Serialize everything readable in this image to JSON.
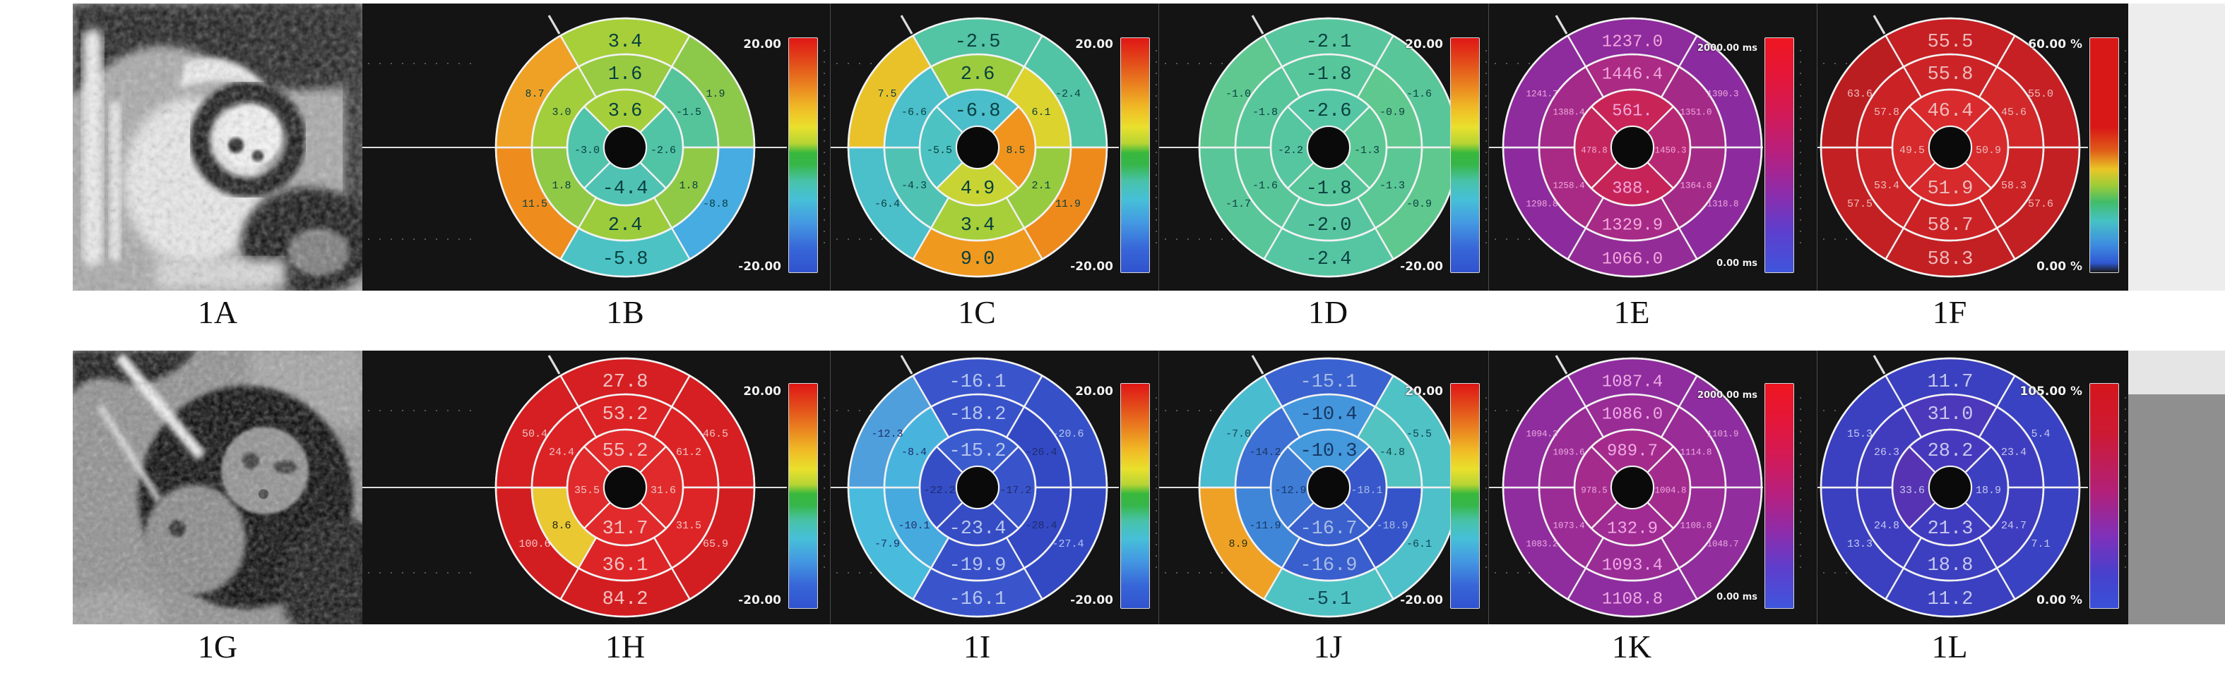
{
  "figure": {
    "captions": [
      "1A",
      "1B",
      "1C",
      "1D",
      "1E",
      "1F",
      "1G",
      "1H",
      "1I",
      "1J",
      "1K",
      "1L"
    ]
  },
  "colorbars": {
    "rainbow": "linear-gradient(180deg,#e01616 0%,#e2451a 9%,#ea8220 20%,#f0bc26 30%,#e9e02c 38%,#b6d434 45%,#38b83c 49%,#36b648 54%,#48c2a8 61%,#46c0d8 69%,#4498e2 79%,#3766d8 90%,#3053ce 100%)",
    "thermal": "linear-gradient(180deg,#ee1620 0%,#e41638 16%,#d41a56 32%,#b52080 50%,#8e2caa 66%,#5e3ecc 82%,#3f55dd 100%)",
    "fbar": "linear-gradient(180deg,#d81717 0%,#d81717 38%,#df5d18 48%,#eac626 56%,#9ccc38 63%,#42bc6a 70%,#46c2c4 78%,#3e8ee0 88%,#3058d2 96%,#1a1a1a 100%)",
    "lbar": "linear-gradient(180deg,#d4161c 0%,#cd1a34 22%,#b22078 48%,#7f30ba 68%,#4641cc 85%,#3a50d8 100%)"
  },
  "panels": [
    {
      "id": "1A",
      "type": "mri",
      "variant": "a",
      "row": 0,
      "col": 0,
      "caption": "1A"
    },
    {
      "id": "1G",
      "type": "mri",
      "variant": "g",
      "row": 1,
      "col": 0,
      "caption": "1G"
    },
    {
      "id": "1B",
      "type": "bullseye",
      "row": 0,
      "col": 1,
      "caption": "1B",
      "bar": "rainbow",
      "scale_top": "20.00",
      "scale_bottom": "-20.00",
      "tc": "#073f3f",
      "outer": [
        [
          "3.4",
          "#a6cf3a"
        ],
        [
          "1.9",
          "#8cc84a"
        ],
        [
          "-8.8",
          "#46ace2"
        ],
        [
          "-5.8",
          "#4cc2c4"
        ],
        [
          "11.5",
          "#ee8c1e"
        ],
        [
          "8.7",
          "#efa126"
        ]
      ],
      "middle": [
        [
          "1.6",
          "#98cb42"
        ],
        [
          "-1.5",
          "#55c49a"
        ],
        [
          "1.8",
          "#90c946"
        ],
        [
          "2.4",
          "#9ccc3c"
        ],
        [
          "1.8",
          "#90c946"
        ],
        [
          "3.0",
          "#a2ce3b"
        ]
      ],
      "inner": [
        [
          "3.6",
          "#a5cf3a"
        ],
        [
          "-2.6",
          "#52c4a6"
        ],
        [
          "-4.4",
          "#4fc2b4"
        ],
        [
          "-3.0",
          "#50c3ab"
        ]
      ]
    },
    {
      "id": "1C",
      "type": "bullseye",
      "row": 0,
      "col": 2,
      "caption": "1C",
      "bar": "rainbow",
      "scale_top": "20.00",
      "scale_bottom": "-20.00",
      "tc": "#073f3f",
      "outer": [
        [
          "-2.5",
          "#53c4a4"
        ],
        [
          "-2.4",
          "#52c4a6"
        ],
        [
          "11.9",
          "#ee8a1c"
        ],
        [
          "9.0",
          "#f0991f"
        ],
        [
          "-6.4",
          "#4bbfca"
        ],
        [
          "7.5",
          "#e9c229"
        ]
      ],
      "middle": [
        [
          "2.6",
          "#9bcc3e"
        ],
        [
          "6.1",
          "#dcd32e"
        ],
        [
          "2.1",
          "#96cb40"
        ],
        [
          "3.4",
          "#a6cf3a"
        ],
        [
          "-4.3",
          "#4fc2b4"
        ],
        [
          "-6.6",
          "#4bbfca"
        ]
      ],
      "inner": [
        [
          "-6.8",
          "#4abeca"
        ],
        [
          "8.5",
          "#f0941e"
        ],
        [
          "4.9",
          "#c8d434"
        ],
        [
          "-5.5",
          "#4dc2c2"
        ]
      ]
    },
    {
      "id": "1D",
      "type": "bullseye",
      "row": 0,
      "col": 3,
      "caption": "1D",
      "bar": "rainbow",
      "scale_top": "20.00",
      "scale_bottom": "-20.00",
      "tc": "#0a4040",
      "outer": [
        [
          "-2.1",
          "#57c69e"
        ],
        [
          "-1.6",
          "#59c699"
        ],
        [
          "-0.9",
          "#5fc88e"
        ],
        [
          "-2.4",
          "#56c6a2"
        ],
        [
          "-1.7",
          "#59c699"
        ],
        [
          "-1.0",
          "#5ec890"
        ]
      ],
      "middle": [
        [
          "-1.8",
          "#58c69b"
        ],
        [
          "-0.9",
          "#5fc88e"
        ],
        [
          "-1.3",
          "#5bc795"
        ],
        [
          "-2.0",
          "#57c6a0"
        ],
        [
          "-1.6",
          "#59c699"
        ],
        [
          "-1.8",
          "#58c69b"
        ]
      ],
      "inner": [
        [
          "-2.6",
          "#55c6a4"
        ],
        [
          "-1.3",
          "#5bc795"
        ],
        [
          "-1.8",
          "#58c69b"
        ],
        [
          "-2.2",
          "#56c6a0"
        ]
      ]
    },
    {
      "id": "1E",
      "type": "bullseye",
      "row": 0,
      "col": 4,
      "caption": "1E",
      "bar": "thermal",
      "ms": true,
      "scale_top": "2000.00 ms",
      "scale_bottom": "0.00 ms",
      "tc": "#f2a8dc",
      "outer": [
        [
          "1237.0",
          "#8e2b9d"
        ],
        [
          "1390.3",
          "#8b2ba0"
        ],
        [
          "1318.8",
          "#8d2b9e"
        ],
        [
          "1066.0",
          "#942c98"
        ],
        [
          "1298.8",
          "#8d2b9e"
        ],
        [
          "1241.7",
          "#8e2b9d"
        ]
      ],
      "middle": [
        [
          "1446.4",
          "#aa2a84"
        ],
        [
          "1351.0",
          "#a42a88"
        ],
        [
          "1364.8",
          "#a42a88"
        ],
        [
          "1329.9",
          "#a62a86"
        ],
        [
          "1258.4",
          "#a82a85"
        ],
        [
          "1388.4",
          "#a32a89"
        ]
      ],
      "inner": [
        [
          "561.",
          "#c92458"
        ],
        [
          "1450.3",
          "#b72874"
        ],
        [
          "388.",
          "#c62459"
        ],
        [
          "478.8",
          "#c4255c"
        ]
      ]
    },
    {
      "id": "1F",
      "type": "bullseye",
      "row": 0,
      "col": 5,
      "caption": "1F",
      "bar": "fbar",
      "scale_top": "60.00 %",
      "scale_bottom": "0.00 %",
      "tc": "#eebcbc",
      "outer": [
        [
          "55.5",
          "#c62024"
        ],
        [
          "55.0",
          "#c62024"
        ],
        [
          "57.6",
          "#c32023"
        ],
        [
          "58.3",
          "#c32023"
        ],
        [
          "57.5",
          "#c32023"
        ],
        [
          "63.6",
          "#bb1e21"
        ]
      ],
      "middle": [
        [
          "55.8",
          "#cc2327"
        ],
        [
          "45.6",
          "#d2282a"
        ],
        [
          "58.3",
          "#cb2226"
        ],
        [
          "58.7",
          "#cb2226"
        ],
        [
          "53.4",
          "#cd2427"
        ],
        [
          "57.8",
          "#cb2226"
        ]
      ],
      "inner": [
        [
          "46.4",
          "#d92b2d"
        ],
        [
          "50.9",
          "#d62a2c"
        ],
        [
          "51.9",
          "#d62a2c"
        ],
        [
          "49.5",
          "#d72a2c"
        ]
      ]
    },
    {
      "id": "1H",
      "type": "bullseye",
      "row": 1,
      "col": 1,
      "caption": "1H",
      "bar": "rainbow",
      "scale_top": "20.00",
      "scale_bottom": "-20.00",
      "tc": "#f2c2c2",
      "outer": [
        [
          "27.8",
          "#d51f22"
        ],
        [
          "46.5",
          "#d51f22"
        ],
        [
          "65.9",
          "#d31e21"
        ],
        [
          "84.2",
          "#d31e21"
        ],
        [
          "100.6",
          "#d31e21"
        ],
        [
          "50.4",
          "#d51f22"
        ]
      ],
      "middle": [
        [
          "53.2",
          "#db2325"
        ],
        [
          "61.2",
          "#db2325"
        ],
        [
          "31.5",
          "#dd2527"
        ],
        [
          "36.1",
          "#dd2527"
        ],
        [
          "8.6",
          "#e9c832",
          "#222222"
        ],
        [
          "24.4",
          "#db2325"
        ]
      ],
      "inner": [
        [
          "55.2",
          "#e12a2b"
        ],
        [
          "31.6",
          "#e12a2b"
        ],
        [
          "31.7",
          "#e12a2b"
        ],
        [
          "35.5",
          "#e12a2b"
        ]
      ]
    },
    {
      "id": "1I",
      "type": "bullseye",
      "row": 1,
      "col": 2,
      "caption": "1I",
      "bar": "rainbow",
      "scale_top": "20.00",
      "scale_bottom": "-20.00",
      "tc": "#b6c6ee",
      "outer": [
        [
          "-16.1",
          "#3a55cc"
        ],
        [
          "-20.6",
          "#3650c8"
        ],
        [
          "-27.4",
          "#3349c4"
        ],
        [
          "-16.1",
          "#3a55cc"
        ],
        [
          "-7.9",
          "#49bbdc",
          "#1d2c6e"
        ],
        [
          "-12.3",
          "#4f9fdc",
          "#1d2c6e"
        ]
      ],
      "middle": [
        [
          "-18.2",
          "#3852ca"
        ],
        [
          "-26.4",
          "#3349c4",
          "#1d2c6e"
        ],
        [
          "-28.4",
          "#3348c2",
          "#1d2c6e"
        ],
        [
          "-19.9",
          "#374fc8"
        ],
        [
          "-10.1",
          "#47aade",
          "#1d2c6e"
        ],
        [
          "-8.4",
          "#48b4de",
          "#1d2c6e"
        ]
      ],
      "inner": [
        [
          "-15.2",
          "#3b5ccf"
        ],
        [
          "-17.2",
          "#3954cb",
          "#1d2c6e"
        ],
        [
          "-23.4",
          "#354cc5"
        ],
        [
          "-22.2",
          "#354ec6",
          "#1d2c6e"
        ]
      ]
    },
    {
      "id": "1J",
      "type": "bullseye",
      "row": 1,
      "col": 3,
      "caption": "1J",
      "bar": "rainbow",
      "scale_top": "20.00",
      "scale_bottom": "-20.00",
      "tc": "#a8bce4",
      "outer": [
        [
          "-15.1",
          "#3a62d0"
        ],
        [
          "-5.5",
          "#4fc2c6",
          "#0f4450"
        ],
        [
          "-6.1",
          "#4dc0ca",
          "#0f4450"
        ],
        [
          "-5.1",
          "#4fc2c4",
          "#0f4450"
        ],
        [
          "8.9",
          "#efa126",
          "#233010"
        ],
        [
          "-7.0",
          "#4abcd0",
          "#0f4450"
        ]
      ],
      "middle": [
        [
          "-10.4",
          "#4496dc",
          "#173764"
        ],
        [
          "-4.8",
          "#52c3c0",
          "#0f4450"
        ],
        [
          "-18.9",
          "#3654c9"
        ],
        [
          "-16.9",
          "#395ecd"
        ],
        [
          "-11.9",
          "#3f86d8",
          "#173764"
        ],
        [
          "-14.2",
          "#3c70d4",
          "#173764"
        ]
      ],
      "inner": [
        [
          "-10.3",
          "#4498dc",
          "#173764"
        ],
        [
          "-18.1",
          "#3757ca"
        ],
        [
          "-16.7",
          "#3960cd"
        ],
        [
          "-12.9",
          "#3e7cd6",
          "#173764"
        ]
      ]
    },
    {
      "id": "1K",
      "type": "bullseye",
      "row": 1,
      "col": 4,
      "caption": "1K",
      "bar": "thermal",
      "ms": true,
      "scale_top": "2000.00 ms",
      "scale_bottom": "0.00 ms",
      "tc": "#eeaae4",
      "outer": [
        [
          "1087.4",
          "#8f2d9e"
        ],
        [
          "1101.9",
          "#8e2d9f"
        ],
        [
          "1048.7",
          "#912d9c"
        ],
        [
          "1108.8",
          "#8e2d9f"
        ],
        [
          "1083.2",
          "#8f2d9e"
        ],
        [
          "1094.3",
          "#8f2d9e"
        ]
      ],
      "middle": [
        [
          "1086.0",
          "#9a2c96"
        ],
        [
          "1114.8",
          "#992c97"
        ],
        [
          "1108.8",
          "#992c97"
        ],
        [
          "1093.4",
          "#9a2c96"
        ],
        [
          "1073.4",
          "#9b2c95"
        ],
        [
          "1093.6",
          "#9a2c96"
        ]
      ],
      "inner": [
        [
          "989.7",
          "#a42b8c"
        ],
        [
          "1004.8",
          "#a32b8d"
        ],
        [
          "132.9",
          "#a02b92"
        ],
        [
          "978.5",
          "#a42b8c"
        ]
      ]
    },
    {
      "id": "1L",
      "type": "bullseye",
      "row": 1,
      "col": 5,
      "caption": "1L",
      "bar": "lbar",
      "scale_top": "105.00 %",
      "scale_bottom": "0.00 %",
      "tc": "#c6c8ee",
      "outer": [
        [
          "11.7",
          "#3a40c0"
        ],
        [
          "5.4",
          "#3942c2"
        ],
        [
          "7.1",
          "#3942c2"
        ],
        [
          "11.2",
          "#3a40c0"
        ],
        [
          "13.3",
          "#3a40c0"
        ],
        [
          "15.3",
          "#3a40c0"
        ]
      ],
      "middle": [
        [
          "31.0",
          "#4c38bb"
        ],
        [
          "23.4",
          "#3f3dbf"
        ],
        [
          "24.7",
          "#3f3dbf"
        ],
        [
          "18.8",
          "#3c3fc0"
        ],
        [
          "24.8",
          "#3f3dbf"
        ],
        [
          "26.3",
          "#413cbe"
        ]
      ],
      "inner": [
        [
          "28.2",
          "#4739bd"
        ],
        [
          "18.9",
          "#3c3fc0"
        ],
        [
          "21.3",
          "#3f3cc0"
        ],
        [
          "33.6",
          "#5633b2"
        ]
      ]
    }
  ],
  "chart_data": [
    {
      "panel": "1B",
      "type": "heatmap",
      "subtype": "polar-bullseye-16-segment",
      "legend_position": "right",
      "scale": {
        "max": 20.0,
        "min": -20.0
      },
      "segment_order": {
        "rings": [
          "top",
          "upper-right",
          "lower-right",
          "bottom",
          "lower-left",
          "upper-left"
        ],
        "apical": [
          "top",
          "right",
          "bottom",
          "left"
        ]
      },
      "outer": [
        3.4,
        1.9,
        -8.8,
        -5.8,
        11.5,
        8.7
      ],
      "middle": [
        1.6,
        -1.5,
        1.8,
        2.4,
        1.8,
        3.0
      ],
      "inner": [
        3.6,
        -2.6,
        -4.4,
        -3.0
      ]
    },
    {
      "panel": "1C",
      "type": "heatmap",
      "subtype": "polar-bullseye-16-segment",
      "legend_position": "right",
      "scale": {
        "max": 20.0,
        "min": -20.0
      },
      "outer": [
        -2.5,
        -2.4,
        11.9,
        9.0,
        -6.4,
        7.5
      ],
      "middle": [
        2.6,
        6.1,
        2.1,
        3.4,
        -4.3,
        -6.6
      ],
      "inner": [
        -6.8,
        8.5,
        4.9,
        -5.5
      ]
    },
    {
      "panel": "1D",
      "type": "heatmap",
      "subtype": "polar-bullseye-16-segment",
      "legend_position": "right",
      "scale": {
        "max": 20.0,
        "min": -20.0
      },
      "outer": [
        -2.1,
        -1.6,
        -0.9,
        -2.4,
        -1.7,
        -1.0
      ],
      "middle": [
        -1.8,
        -0.9,
        -1.3,
        -2.0,
        -1.6,
        -1.8
      ],
      "inner": [
        -2.6,
        -1.3,
        -1.8,
        -2.2
      ]
    },
    {
      "panel": "1E",
      "type": "heatmap",
      "subtype": "polar-bullseye-16-segment",
      "legend_position": "right",
      "scale": {
        "max": 2000.0,
        "min": 0.0,
        "unit": "ms"
      },
      "outer": [
        1237.0,
        1390.3,
        1318.8,
        1066.0,
        1298.8,
        1241.7
      ],
      "middle": [
        1446.4,
        1351.0,
        1364.8,
        1329.9,
        1258.4,
        1388.4
      ],
      "inner": [
        561,
        1450.3,
        388,
        478.8
      ]
    },
    {
      "panel": "1F",
      "type": "heatmap",
      "subtype": "polar-bullseye-16-segment",
      "legend_position": "right",
      "scale": {
        "max": 60.0,
        "min": 0.0,
        "unit": "%"
      },
      "outer": [
        55.5,
        55.0,
        57.6,
        58.3,
        57.5,
        63.6
      ],
      "middle": [
        55.8,
        45.6,
        58.3,
        58.7,
        53.4,
        57.8
      ],
      "inner": [
        46.4,
        50.9,
        51.9,
        49.5
      ]
    },
    {
      "panel": "1H",
      "type": "heatmap",
      "subtype": "polar-bullseye-16-segment",
      "legend_position": "right",
      "scale": {
        "max": 20.0,
        "min": -20.0
      },
      "outer": [
        27.8,
        46.5,
        65.9,
        84.2,
        100.6,
        50.4
      ],
      "middle": [
        53.2,
        61.2,
        31.5,
        36.1,
        8.6,
        24.4
      ],
      "inner": [
        55.2,
        31.6,
        31.7,
        35.5
      ]
    },
    {
      "panel": "1I",
      "type": "heatmap",
      "subtype": "polar-bullseye-16-segment",
      "legend_position": "right",
      "scale": {
        "max": 20.0,
        "min": -20.0
      },
      "outer": [
        -16.1,
        -20.6,
        -27.4,
        -16.1,
        -7.9,
        -12.3
      ],
      "middle": [
        -18.2,
        -26.4,
        -28.4,
        -19.9,
        -10.1,
        -8.4
      ],
      "inner": [
        -15.2,
        -17.2,
        -23.4,
        -22.2
      ]
    },
    {
      "panel": "1J",
      "type": "heatmap",
      "subtype": "polar-bullseye-16-segment",
      "legend_position": "right",
      "scale": {
        "max": 20.0,
        "min": -20.0
      },
      "outer": [
        -15.1,
        -5.5,
        -6.1,
        -5.1,
        8.9,
        -7.0
      ],
      "middle": [
        -10.4,
        -4.8,
        -18.9,
        -16.9,
        -11.9,
        -14.2
      ],
      "inner": [
        -10.3,
        -18.1,
        -16.7,
        -12.9
      ]
    },
    {
      "panel": "1K",
      "type": "heatmap",
      "subtype": "polar-bullseye-16-segment",
      "legend_position": "right",
      "scale": {
        "max": 2000.0,
        "min": 0.0,
        "unit": "ms"
      },
      "outer": [
        1087.4,
        1101.9,
        1048.7,
        1108.8,
        1083.2,
        1094.3
      ],
      "middle": [
        1086.0,
        1114.8,
        1108.8,
        1093.4,
        1073.4,
        1093.6
      ],
      "inner": [
        989.7,
        1004.8,
        132.9,
        978.5
      ]
    },
    {
      "panel": "1L",
      "type": "heatmap",
      "subtype": "polar-bullseye-16-segment",
      "legend_position": "right",
      "scale": {
        "max": 105.0,
        "min": 0.0,
        "unit": "%"
      },
      "outer": [
        11.7,
        5.4,
        7.1,
        11.2,
        13.3,
        15.3
      ],
      "middle": [
        31.0,
        23.4,
        24.7,
        18.8,
        24.8,
        26.3
      ],
      "inner": [
        28.2,
        18.9,
        21.3,
        33.6
      ]
    }
  ]
}
